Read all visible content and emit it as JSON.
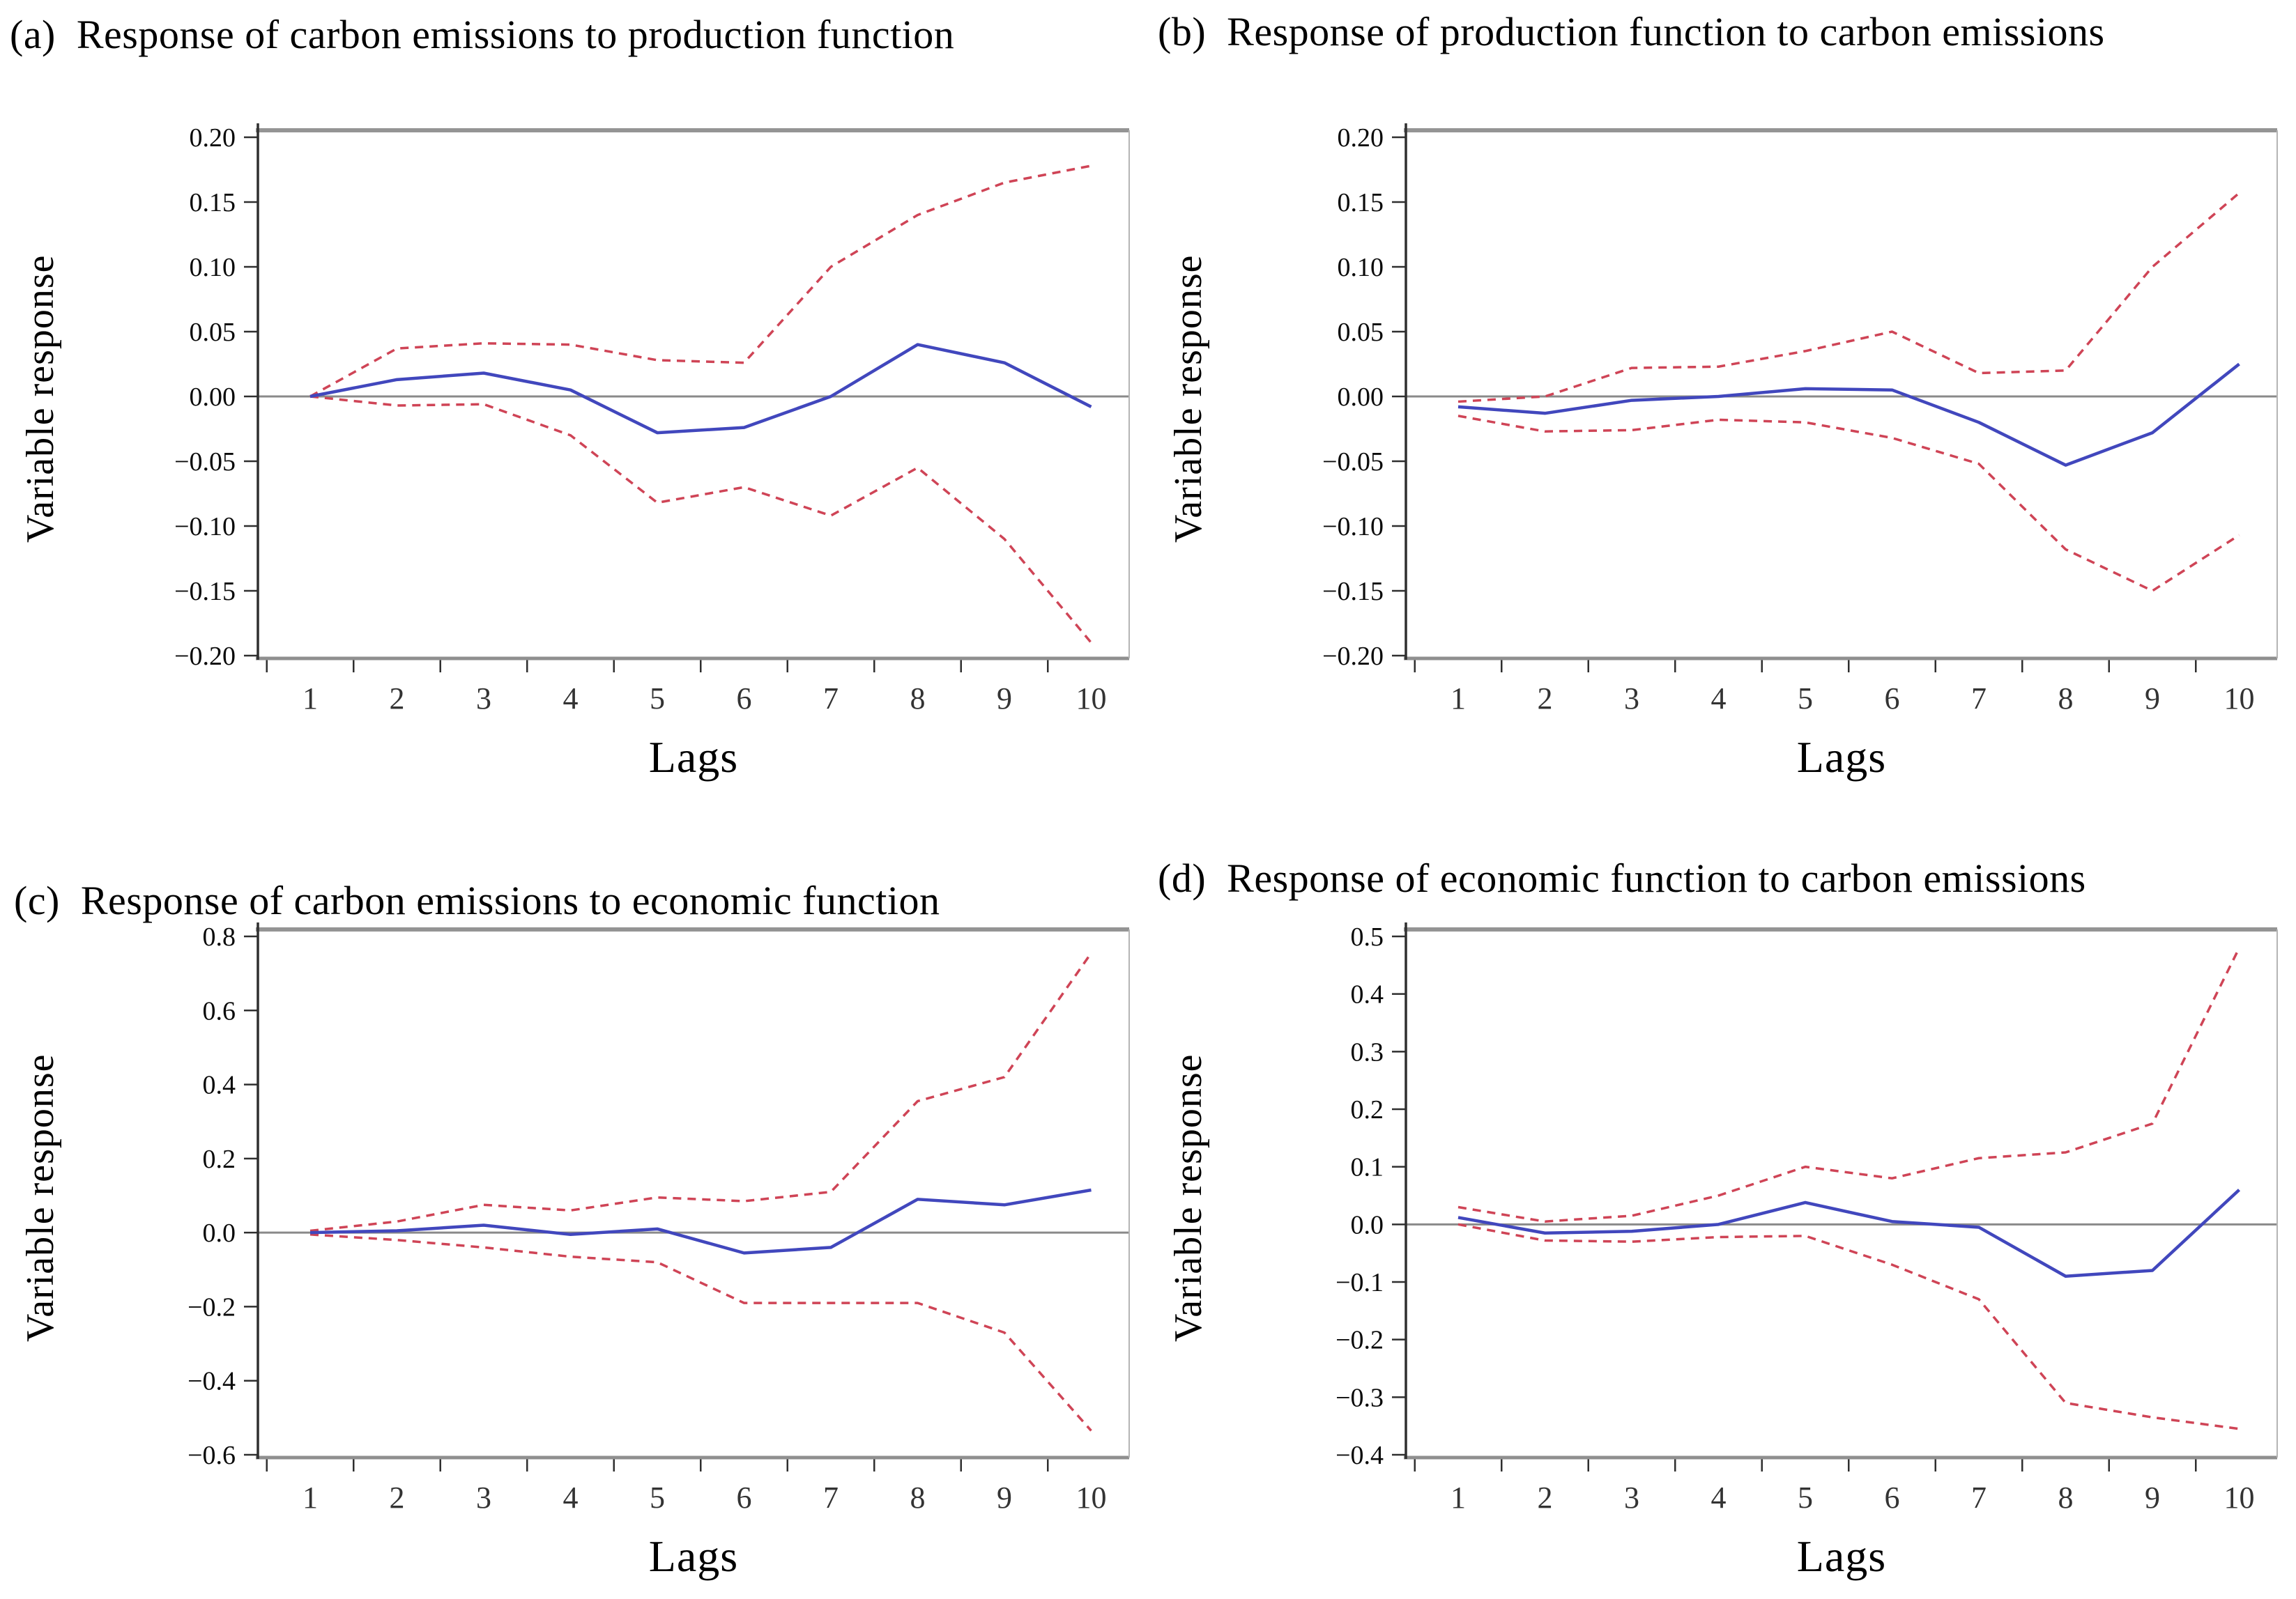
{
  "figure": {
    "ylabel": "Variable response",
    "xlabel": "Lags",
    "colors": {
      "response_line": "#4147bd",
      "confidence_band": "#cf4456",
      "zero_line": "#8a8a8a",
      "plot_border": "#949494",
      "axis": "#2f2f2f"
    }
  },
  "chart_data": [
    {
      "type": "line",
      "label": "(a)",
      "title": "Response of carbon emissions to production function",
      "xlabel": "Lags",
      "ylabel": "Variable response",
      "x": [
        1,
        2,
        3,
        4,
        5,
        6,
        7,
        8,
        9,
        10
      ],
      "xtick_labels": [
        "1",
        "2",
        "3",
        "4",
        "5",
        "6",
        "7",
        "8",
        "9",
        "10"
      ],
      "ylim": [
        -0.2,
        0.2
      ],
      "yticks": [
        0.2,
        0.15,
        0.1,
        0.05,
        0.0,
        -0.05,
        -0.1,
        -0.15,
        -0.2
      ],
      "ytick_labels": [
        "0.20",
        "0.15",
        "0.10",
        "0.05",
        "0.00",
        "−0.05",
        "−0.10",
        "−0.15",
        "−0.20"
      ],
      "grid": false,
      "zero_line": true,
      "legend": null,
      "series": [
        {
          "name": "response",
          "style": "solid",
          "color": "#4147bd",
          "values": [
            0.0,
            0.013,
            0.018,
            0.005,
            -0.028,
            -0.024,
            0.0,
            0.04,
            0.026,
            -0.008
          ]
        },
        {
          "name": "upper-confidence-band",
          "style": "dashed",
          "color": "#cf4456",
          "values": [
            0.0,
            0.037,
            0.041,
            0.04,
            0.028,
            0.026,
            0.1,
            0.14,
            0.165,
            0.178
          ]
        },
        {
          "name": "lower-confidence-band",
          "style": "dashed",
          "color": "#cf4456",
          "values": [
            0.0,
            -0.007,
            -0.006,
            -0.03,
            -0.082,
            -0.07,
            -0.092,
            -0.055,
            -0.11,
            -0.19
          ]
        }
      ]
    },
    {
      "type": "line",
      "label": "(b)",
      "title": "Response of production function to carbon emissions",
      "xlabel": "Lags",
      "ylabel": "Variable response",
      "x": [
        1,
        2,
        3,
        4,
        5,
        6,
        7,
        8,
        9,
        10
      ],
      "xtick_labels": [
        "1",
        "2",
        "3",
        "4",
        "5",
        "6",
        "7",
        "8",
        "9",
        "10"
      ],
      "ylim": [
        -0.2,
        0.2
      ],
      "yticks": [
        0.2,
        0.15,
        0.1,
        0.05,
        0.0,
        -0.05,
        -0.1,
        -0.15,
        -0.2
      ],
      "ytick_labels": [
        "0.20",
        "0.15",
        "0.10",
        "0.05",
        "0.00",
        "−0.05",
        "−0.10",
        "−0.15",
        "−0.20"
      ],
      "grid": false,
      "zero_line": true,
      "legend": null,
      "series": [
        {
          "name": "response",
          "style": "solid",
          "color": "#4147bd",
          "values": [
            -0.008,
            -0.013,
            -0.003,
            0.0,
            0.006,
            0.005,
            -0.02,
            -0.053,
            -0.028,
            0.025
          ]
        },
        {
          "name": "upper-confidence-band",
          "style": "dashed",
          "color": "#cf4456",
          "values": [
            -0.004,
            0.0,
            0.022,
            0.023,
            0.035,
            0.05,
            0.018,
            0.02,
            0.1,
            0.157
          ]
        },
        {
          "name": "lower-confidence-band",
          "style": "dashed",
          "color": "#cf4456",
          "values": [
            -0.015,
            -0.027,
            -0.026,
            -0.018,
            -0.02,
            -0.032,
            -0.052,
            -0.118,
            -0.15,
            -0.107
          ]
        }
      ]
    },
    {
      "type": "line",
      "label": "(c)",
      "title": "Response of carbon emissions to economic function",
      "xlabel": "Lags",
      "ylabel": "Variable response",
      "x": [
        1,
        2,
        3,
        4,
        5,
        6,
        7,
        8,
        9,
        10
      ],
      "xtick_labels": [
        "1",
        "2",
        "3",
        "4",
        "5",
        "6",
        "7",
        "8",
        "9",
        "10"
      ],
      "ylim": [
        -0.6,
        0.8
      ],
      "yticks": [
        0.8,
        0.6,
        0.4,
        0.2,
        0.0,
        -0.2,
        -0.4,
        -0.6
      ],
      "ytick_labels": [
        "0.8",
        "0.6",
        "0.4",
        "0.2",
        "0.0",
        "−0.2",
        "−0.4",
        "−0.6"
      ],
      "grid": false,
      "zero_line": true,
      "legend": null,
      "series": [
        {
          "name": "response",
          "style": "solid",
          "color": "#4147bd",
          "values": [
            0.0,
            0.005,
            0.02,
            -0.005,
            0.01,
            -0.055,
            -0.04,
            0.09,
            0.075,
            0.115
          ]
        },
        {
          "name": "upper-confidence-band",
          "style": "dashed",
          "color": "#cf4456",
          "values": [
            0.005,
            0.03,
            0.075,
            0.06,
            0.095,
            0.085,
            0.11,
            0.355,
            0.42,
            0.755
          ]
        },
        {
          "name": "lower-confidence-band",
          "style": "dashed",
          "color": "#cf4456",
          "values": [
            -0.005,
            -0.02,
            -0.04,
            -0.065,
            -0.08,
            -0.19,
            -0.19,
            -0.19,
            -0.27,
            -0.535
          ]
        }
      ]
    },
    {
      "type": "line",
      "label": "(d)",
      "title": "Response of economic function to carbon emissions",
      "xlabel": "Lags",
      "ylabel": "Variable response",
      "x": [
        1,
        2,
        3,
        4,
        5,
        6,
        7,
        8,
        9,
        10
      ],
      "xtick_labels": [
        "1",
        "2",
        "3",
        "4",
        "5",
        "6",
        "7",
        "8",
        "9",
        "10"
      ],
      "ylim": [
        -0.4,
        0.5
      ],
      "yticks": [
        0.5,
        0.4,
        0.3,
        0.2,
        0.1,
        0.0,
        -0.1,
        -0.2,
        -0.3,
        -0.4
      ],
      "ytick_labels": [
        "0.5",
        "0.4",
        "0.3",
        "0.2",
        "0.1",
        "0.0",
        "−0.1",
        "−0.2",
        "−0.3",
        "−0.4"
      ],
      "grid": false,
      "zero_line": true,
      "legend": null,
      "series": [
        {
          "name": "response",
          "style": "solid",
          "color": "#4147bd",
          "values": [
            0.012,
            -0.015,
            -0.012,
            0.0,
            0.038,
            0.005,
            -0.005,
            -0.09,
            -0.08,
            0.06
          ]
        },
        {
          "name": "upper-confidence-band",
          "style": "dashed",
          "color": "#cf4456",
          "values": [
            0.03,
            0.005,
            0.015,
            0.05,
            0.1,
            0.08,
            0.115,
            0.125,
            0.175,
            0.48
          ]
        },
        {
          "name": "lower-confidence-band",
          "style": "dashed",
          "color": "#cf4456",
          "values": [
            0.0,
            -0.028,
            -0.03,
            -0.022,
            -0.02,
            -0.07,
            -0.13,
            -0.31,
            -0.335,
            -0.355
          ]
        }
      ]
    }
  ]
}
